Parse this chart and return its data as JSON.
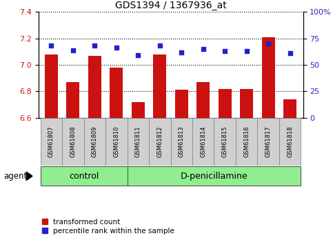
{
  "title": "GDS1394 / 1367936_at",
  "categories": [
    "GSM61807",
    "GSM61808",
    "GSM61809",
    "GSM61810",
    "GSM61811",
    "GSM61812",
    "GSM61813",
    "GSM61814",
    "GSM61815",
    "GSM61816",
    "GSM61817",
    "GSM61818"
  ],
  "bar_values": [
    7.08,
    6.87,
    7.07,
    6.98,
    6.72,
    7.08,
    6.81,
    6.87,
    6.82,
    6.82,
    7.21,
    6.74
  ],
  "blue_values": [
    68,
    64,
    68,
    66,
    59,
    68,
    62,
    65,
    63,
    63,
    70,
    61
  ],
  "ylim_left": [
    6.6,
    7.4
  ],
  "ylim_right": [
    0,
    100
  ],
  "yticks_left": [
    6.6,
    6.8,
    7.0,
    7.2,
    7.4
  ],
  "yticks_right": [
    0,
    25,
    50,
    75,
    100
  ],
  "bar_color": "#cc1111",
  "blue_color": "#2222cc",
  "gray_box_color": "#d0d0d0",
  "control_color": "#90ee90",
  "dpenicillamine_color": "#90ee90",
  "control_samples": 4,
  "dpenicillamine_samples": 8,
  "legend_red": "transformed count",
  "legend_blue": "percentile rank within the sample",
  "agent_label": "agent",
  "control_label": "control",
  "dpenicillamine_label": "D-penicillamine"
}
